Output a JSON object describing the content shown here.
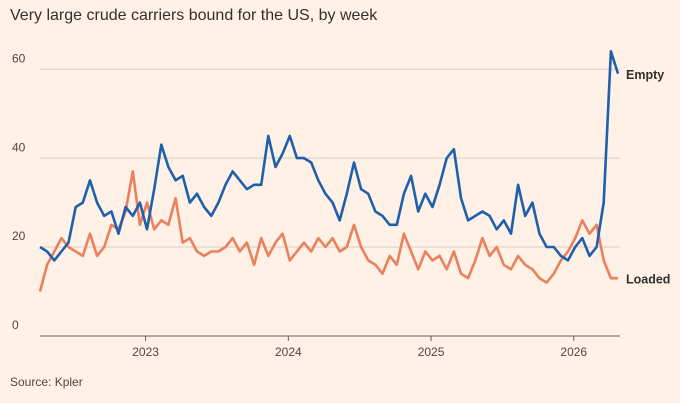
{
  "chart_data": {
    "type": "line",
    "title": "Very large crude carriers bound for the US, by week",
    "source": "Source: Kpler",
    "x": [
      2022.26,
      2022.31,
      2022.36,
      2022.41,
      2022.46,
      2022.51,
      2022.56,
      2022.61,
      2022.66,
      2022.71,
      2022.76,
      2022.81,
      2022.86,
      2022.91,
      2022.96,
      2023.01,
      2023.06,
      2023.11,
      2023.16,
      2023.21,
      2023.26,
      2023.31,
      2023.36,
      2023.41,
      2023.46,
      2023.51,
      2023.56,
      2023.61,
      2023.66,
      2023.71,
      2023.76,
      2023.81,
      2023.86,
      2023.91,
      2023.96,
      2024.01,
      2024.06,
      2024.11,
      2024.16,
      2024.21,
      2024.26,
      2024.31,
      2024.36,
      2024.41,
      2024.46,
      2024.51,
      2024.56,
      2024.61,
      2024.66,
      2024.71,
      2024.76,
      2024.81,
      2024.86,
      2024.91,
      2024.96,
      2025.01,
      2025.06,
      2025.11,
      2025.16,
      2025.21,
      2025.26,
      2025.31,
      2025.36,
      2025.41,
      2025.46,
      2025.51,
      2025.56,
      2025.61,
      2025.66,
      2025.71,
      2025.76,
      2025.81,
      2025.86,
      2025.91,
      2025.96,
      2026.01,
      2026.06,
      2026.11,
      2026.16,
      2026.21,
      2026.26,
      2026.31
    ],
    "series": [
      {
        "name": "Empty",
        "color": "#1f5fab",
        "values": [
          20,
          19,
          17,
          19,
          21,
          29,
          30,
          35,
          30,
          27,
          28,
          23,
          29,
          27,
          30,
          24,
          33,
          43,
          38,
          35,
          36,
          30,
          32,
          29,
          27,
          30,
          34,
          37,
          35,
          33,
          34,
          34,
          45,
          38,
          41,
          45,
          40,
          40,
          39,
          35,
          32,
          30,
          26,
          32,
          39,
          33,
          32,
          28,
          27,
          25,
          25,
          32,
          36,
          28,
          32,
          29,
          34,
          40,
          42,
          31,
          26,
          27,
          28,
          27,
          24,
          26,
          23,
          34,
          27,
          30,
          23,
          20,
          20,
          18,
          17,
          20,
          22,
          18,
          20,
          30,
          64,
          59
        ]
      },
      {
        "name": "Loaded",
        "color": "#e9805e",
        "values": [
          10,
          16,
          19,
          22,
          20,
          19,
          18,
          23,
          18,
          20,
          25,
          24,
          28,
          37,
          25,
          30,
          24,
          26,
          25,
          31,
          21,
          22,
          19,
          18,
          19,
          19,
          20,
          22,
          19,
          21,
          16,
          22,
          18,
          21,
          23,
          17,
          19,
          21,
          19,
          22,
          20,
          22,
          19,
          20,
          25,
          20,
          17,
          16,
          14,
          18,
          16,
          23,
          19,
          15,
          19,
          17,
          18,
          15,
          19,
          14,
          13,
          17,
          22,
          18,
          20,
          16,
          15,
          18,
          16,
          15,
          13,
          12,
          14,
          17,
          19,
          22,
          26,
          23,
          25,
          17,
          13,
          13
        ]
      }
    ],
    "xlim": [
      2022.26,
      2026.31
    ],
    "xticks": [
      2023,
      2024,
      2025,
      2026
    ],
    "ylim": [
      0,
      67
    ],
    "yticks": [
      0,
      20,
      40,
      60
    ],
    "grid": true
  }
}
